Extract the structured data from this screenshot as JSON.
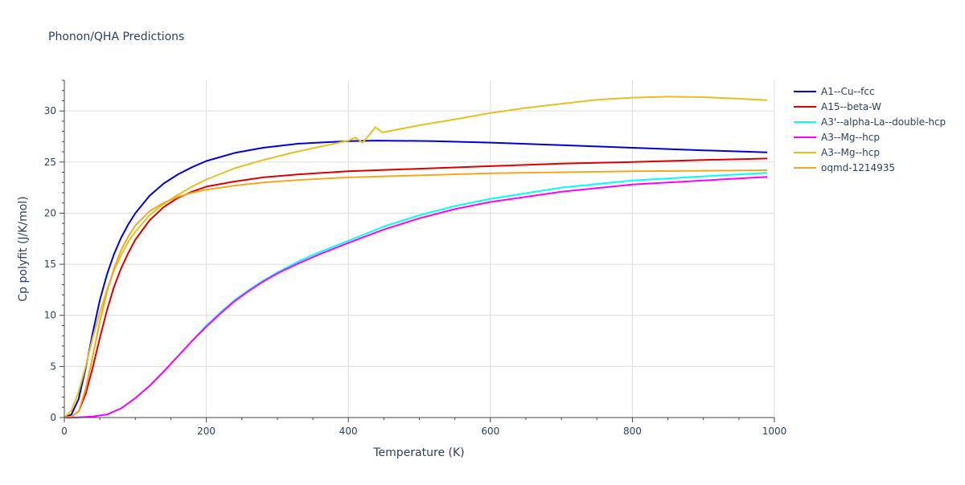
{
  "chart_data": {
    "type": "line",
    "title": "Phonon/QHA Predictions",
    "xlabel": "Temperature (K)",
    "ylabel": "Cp polyfit (J/K/mol)",
    "xlim": [
      0,
      1000
    ],
    "ylim": [
      0,
      33
    ],
    "x_ticks": [
      0,
      200,
      400,
      600,
      800,
      1000
    ],
    "y_ticks": [
      0,
      5,
      10,
      15,
      20,
      25,
      30
    ],
    "grid": true,
    "legend_position": "right",
    "series": [
      {
        "name": "A1--Cu--fcc",
        "color": "#0000dd",
        "points": [
          [
            0,
            0
          ],
          [
            10,
            0.3
          ],
          [
            20,
            1.8
          ],
          [
            30,
            4.8
          ],
          [
            40,
            8.3
          ],
          [
            50,
            11.5
          ],
          [
            60,
            14.0
          ],
          [
            70,
            16.0
          ],
          [
            80,
            17.6
          ],
          [
            90,
            18.9
          ],
          [
            100,
            20.0
          ],
          [
            120,
            21.7
          ],
          [
            140,
            22.9
          ],
          [
            160,
            23.8
          ],
          [
            180,
            24.5
          ],
          [
            200,
            25.1
          ],
          [
            240,
            25.9
          ],
          [
            280,
            26.4
          ],
          [
            330,
            26.8
          ],
          [
            400,
            27.05
          ],
          [
            440,
            27.1
          ],
          [
            520,
            27.05
          ],
          [
            600,
            26.9
          ],
          [
            700,
            26.65
          ],
          [
            800,
            26.4
          ],
          [
            900,
            26.15
          ],
          [
            990,
            25.95
          ]
        ]
      },
      {
        "name": "A15--beta-W",
        "color": "#dd0000",
        "points": [
          [
            0,
            0
          ],
          [
            10,
            0.1
          ],
          [
            20,
            0.6
          ],
          [
            30,
            2.3
          ],
          [
            40,
            4.9
          ],
          [
            50,
            7.8
          ],
          [
            60,
            10.5
          ],
          [
            70,
            12.8
          ],
          [
            80,
            14.6
          ],
          [
            90,
            16.1
          ],
          [
            100,
            17.4
          ],
          [
            120,
            19.3
          ],
          [
            140,
            20.6
          ],
          [
            160,
            21.5
          ],
          [
            180,
            22.1
          ],
          [
            200,
            22.6
          ],
          [
            240,
            23.1
          ],
          [
            280,
            23.5
          ],
          [
            330,
            23.8
          ],
          [
            400,
            24.1
          ],
          [
            500,
            24.35
          ],
          [
            600,
            24.6
          ],
          [
            700,
            24.85
          ],
          [
            800,
            25.0
          ],
          [
            900,
            25.2
          ],
          [
            990,
            25.35
          ]
        ]
      },
      {
        "name": "A3'--alpha-La--double-hcp",
        "color": "#00ffff",
        "points": [
          [
            0,
            0
          ],
          [
            20,
            0.02
          ],
          [
            40,
            0.1
          ],
          [
            60,
            0.3
          ],
          [
            80,
            0.9
          ],
          [
            100,
            1.9
          ],
          [
            120,
            3.1
          ],
          [
            140,
            4.5
          ],
          [
            160,
            6.0
          ],
          [
            180,
            7.5
          ],
          [
            200,
            9.0
          ],
          [
            220,
            10.3
          ],
          [
            240,
            11.5
          ],
          [
            260,
            12.5
          ],
          [
            280,
            13.4
          ],
          [
            300,
            14.2
          ],
          [
            330,
            15.3
          ],
          [
            360,
            16.2
          ],
          [
            400,
            17.3
          ],
          [
            450,
            18.7
          ],
          [
            500,
            19.8
          ],
          [
            550,
            20.7
          ],
          [
            600,
            21.4
          ],
          [
            700,
            22.5
          ],
          [
            800,
            23.2
          ],
          [
            900,
            23.6
          ],
          [
            990,
            23.95
          ]
        ]
      },
      {
        "name": "A3--Mg--hcp",
        "color": "#ff00ff",
        "points": [
          [
            0,
            0
          ],
          [
            20,
            0.02
          ],
          [
            40,
            0.1
          ],
          [
            60,
            0.3
          ],
          [
            80,
            0.9
          ],
          [
            100,
            1.9
          ],
          [
            120,
            3.1
          ],
          [
            140,
            4.5
          ],
          [
            160,
            6.0
          ],
          [
            180,
            7.5
          ],
          [
            200,
            8.9
          ],
          [
            220,
            10.2
          ],
          [
            240,
            11.4
          ],
          [
            260,
            12.4
          ],
          [
            280,
            13.3
          ],
          [
            300,
            14.1
          ],
          [
            330,
            15.1
          ],
          [
            360,
            16.0
          ],
          [
            400,
            17.1
          ],
          [
            450,
            18.4
          ],
          [
            500,
            19.5
          ],
          [
            550,
            20.4
          ],
          [
            600,
            21.1
          ],
          [
            700,
            22.1
          ],
          [
            800,
            22.8
          ],
          [
            900,
            23.2
          ],
          [
            990,
            23.55
          ]
        ]
      },
      {
        "name": "A3--Mg--hcp",
        "color": "#e6c020",
        "points": [
          [
            0,
            0
          ],
          [
            10,
            0.7
          ],
          [
            20,
            2.5
          ],
          [
            30,
            5.0
          ],
          [
            40,
            7.8
          ],
          [
            50,
            10.3
          ],
          [
            60,
            12.5
          ],
          [
            70,
            14.4
          ],
          [
            80,
            15.9
          ],
          [
            90,
            17.2
          ],
          [
            100,
            18.2
          ],
          [
            120,
            19.8
          ],
          [
            140,
            20.9
          ],
          [
            160,
            21.8
          ],
          [
            180,
            22.6
          ],
          [
            200,
            23.3
          ],
          [
            240,
            24.4
          ],
          [
            280,
            25.2
          ],
          [
            320,
            25.9
          ],
          [
            360,
            26.5
          ],
          [
            400,
            27.1
          ],
          [
            410,
            27.4
          ],
          [
            420,
            26.9
          ],
          [
            430,
            27.7
          ],
          [
            438,
            28.4
          ],
          [
            448,
            27.9
          ],
          [
            500,
            28.6
          ],
          [
            560,
            29.3
          ],
          [
            600,
            29.8
          ],
          [
            650,
            30.3
          ],
          [
            700,
            30.7
          ],
          [
            750,
            31.1
          ],
          [
            800,
            31.3
          ],
          [
            850,
            31.4
          ],
          [
            900,
            31.35
          ],
          [
            950,
            31.2
          ],
          [
            990,
            31.05
          ]
        ]
      },
      {
        "name": "oqmd-1214935",
        "color": "#f5a623",
        "points": [
          [
            0,
            0
          ],
          [
            10,
            0.1
          ],
          [
            20,
            0.6
          ],
          [
            30,
            2.8
          ],
          [
            40,
            6.0
          ],
          [
            50,
            9.4
          ],
          [
            60,
            12.3
          ],
          [
            70,
            14.6
          ],
          [
            80,
            16.4
          ],
          [
            90,
            17.7
          ],
          [
            100,
            18.8
          ],
          [
            120,
            20.2
          ],
          [
            140,
            21.0
          ],
          [
            160,
            21.6
          ],
          [
            180,
            22.0
          ],
          [
            200,
            22.3
          ],
          [
            240,
            22.7
          ],
          [
            280,
            23.0
          ],
          [
            330,
            23.25
          ],
          [
            400,
            23.5
          ],
          [
            500,
            23.7
          ],
          [
            600,
            23.9
          ],
          [
            700,
            24.0
          ],
          [
            800,
            24.1
          ],
          [
            900,
            24.15
          ],
          [
            990,
            24.2
          ]
        ]
      }
    ]
  }
}
